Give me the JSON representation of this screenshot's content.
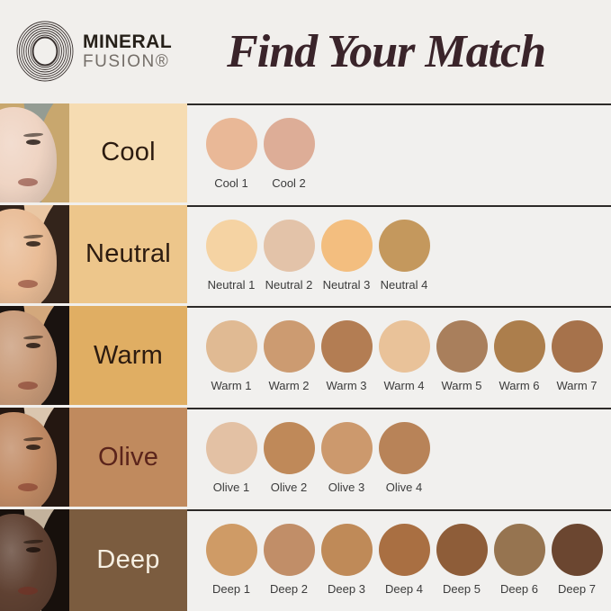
{
  "header": {
    "brand_line1": "MINERAL",
    "brand_line2": "FUSION®",
    "title": "Find Your Match"
  },
  "rows": [
    {
      "label": "Cool",
      "label_bg": "#F6DCB2",
      "label_color": "#2C1B10",
      "face": {
        "skin": "#EFD4C3",
        "hair": "#C8A76E",
        "bg": "#949C93"
      },
      "shades": [
        {
          "name": "Cool 1",
          "color": "#E9B897"
        },
        {
          "name": "Cool 2",
          "color": "#DDAD97"
        }
      ]
    },
    {
      "label": "Neutral",
      "label_bg": "#EDC68B",
      "label_color": "#2C1B10",
      "face": {
        "skin": "#E9BC96",
        "hair": "#33241B",
        "bg": "#EAC7A3"
      },
      "shades": [
        {
          "name": "Neutral 1",
          "color": "#F5D3A3"
        },
        {
          "name": "Neutral 2",
          "color": "#E3C3A9"
        },
        {
          "name": "Neutral 3",
          "color": "#F3BE7F"
        },
        {
          "name": "Neutral 4",
          "color": "#C4985D"
        }
      ]
    },
    {
      "label": "Warm",
      "label_bg": "#E0AE63",
      "label_color": "#2C1B10",
      "face": {
        "skin": "#C99B79",
        "hair": "#1A1310",
        "bg": "#D3A87C"
      },
      "shades": [
        {
          "name": "Warm 1",
          "color": "#E0BA93"
        },
        {
          "name": "Warm 2",
          "color": "#CC9B71"
        },
        {
          "name": "Warm 3",
          "color": "#B37D53"
        },
        {
          "name": "Warm 4",
          "color": "#E9C299"
        },
        {
          "name": "Warm 5",
          "color": "#A97F5C"
        },
        {
          "name": "Warm 6",
          "color": "#AC7E4C"
        },
        {
          "name": "Warm 7",
          "color": "#A6724B"
        }
      ]
    },
    {
      "label": "Olive",
      "label_bg": "#C08A5E",
      "label_color": "#5B241B",
      "face": {
        "skin": "#C18B65",
        "hair": "#241711",
        "bg": "#DAC6AF"
      },
      "shades": [
        {
          "name": "Olive 1",
          "color": "#E3C1A4"
        },
        {
          "name": "Olive 2",
          "color": "#BF8959"
        },
        {
          "name": "Olive 3",
          "color": "#CC996D"
        },
        {
          "name": "Olive 4",
          "color": "#B88358"
        }
      ]
    },
    {
      "label": "Deep",
      "label_bg": "#7B5C3F",
      "label_color": "#F6EFE2",
      "face": {
        "skin": "#5F4132",
        "hair": "#17100C",
        "bg": "#C3B29C"
      },
      "shades": [
        {
          "name": "Deep 1",
          "color": "#CF9B66"
        },
        {
          "name": "Deep 2",
          "color": "#C18E68"
        },
        {
          "name": "Deep 3",
          "color": "#BF8A58"
        },
        {
          "name": "Deep 4",
          "color": "#A96F42"
        },
        {
          "name": "Deep 5",
          "color": "#8E5D39"
        },
        {
          "name": "Deep 6",
          "color": "#967450"
        },
        {
          "name": "Deep 7",
          "color": "#6B4630"
        }
      ]
    }
  ]
}
